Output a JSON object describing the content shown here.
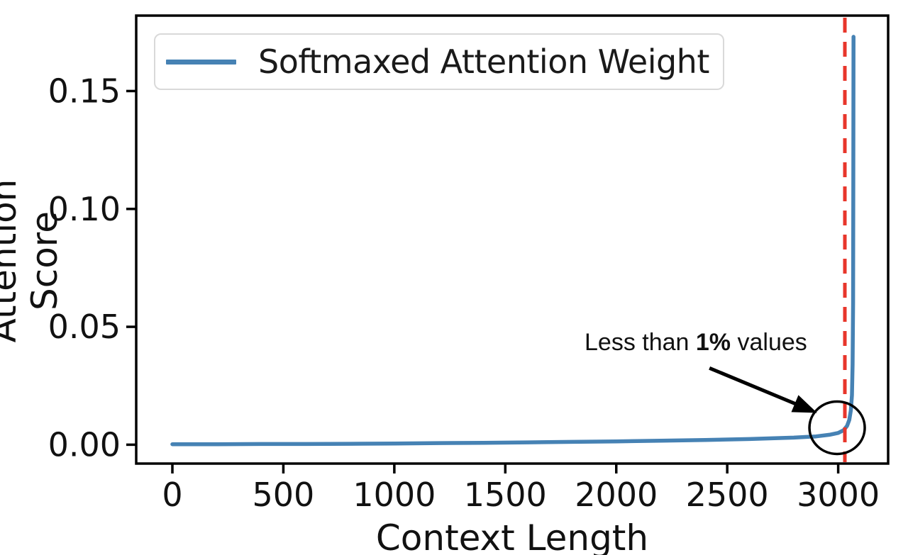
{
  "chart_data": {
    "type": "line",
    "title": "",
    "xlabel": "Context Length",
    "ylabel": "Attention Score",
    "xlim": [
      -163,
      3225
    ],
    "ylim": [
      -0.008,
      0.182
    ],
    "xticks": [
      0,
      500,
      1000,
      1500,
      2000,
      2500,
      3000
    ],
    "xtick_labels": [
      "0",
      "500",
      "1000",
      "1500",
      "2000",
      "2500",
      "3000"
    ],
    "yticks": [
      0.0,
      0.05,
      0.1,
      0.15
    ],
    "ytick_labels": [
      "0.00",
      "0.05",
      "0.10",
      "0.15"
    ],
    "grid": false,
    "legend_position": "upper left",
    "series": [
      {
        "name": "Softmaxed Attention Weight",
        "color": "#4682b4",
        "x": [
          0,
          200,
          400,
          600,
          800,
          1000,
          1200,
          1400,
          1600,
          1800,
          2000,
          2200,
          2400,
          2600,
          2800,
          2900,
          2960,
          3000,
          3025,
          3040,
          3050,
          3057,
          3062,
          3065,
          3067,
          3068,
          3069
        ],
        "y": [
          0.0002,
          0.0002,
          0.0003,
          0.0003,
          0.0004,
          0.0005,
          0.0007,
          0.0008,
          0.001,
          0.0012,
          0.0014,
          0.0017,
          0.002,
          0.0024,
          0.003,
          0.0035,
          0.0042,
          0.005,
          0.0062,
          0.008,
          0.0105,
          0.0145,
          0.021,
          0.034,
          0.06,
          0.11,
          0.173
        ]
      }
    ],
    "vline": {
      "x": 3030,
      "color": "#e8362b",
      "style": "dashed",
      "width": 5
    },
    "annotation": {
      "prefix": "Less than ",
      "bold": "1%",
      "suffix": " values",
      "arrow_from": [
        2420,
        0.0325
      ],
      "arrow_to": [
        2905,
        0.0135
      ],
      "circle_center": [
        2995,
        0.0072
      ],
      "circle_radius_px": [
        39,
        37
      ]
    },
    "peak_value": 0.173,
    "axis_color": "#000000"
  }
}
